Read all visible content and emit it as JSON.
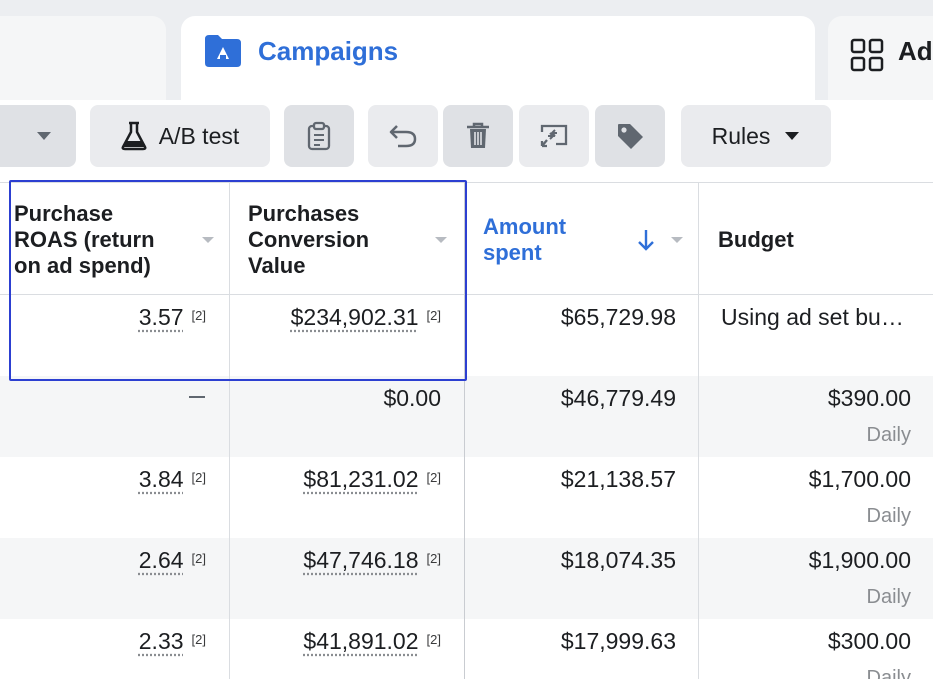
{
  "tabs": {
    "active_label": "Campaigns",
    "right_label": "Ad"
  },
  "toolbar": {
    "ab_test_label": "A/B test",
    "rules_label": "Rules"
  },
  "table": {
    "columns": [
      {
        "key": "roas",
        "label_lines": [
          "Purchase",
          "ROAS (return",
          "on ad spend)"
        ]
      },
      {
        "key": "conv_value",
        "label_lines": [
          "Purchases",
          "Conversion",
          "Value"
        ]
      },
      {
        "key": "amount_spent",
        "label_lines": [
          "Amount",
          "spent"
        ],
        "sorted": "desc"
      },
      {
        "key": "budget",
        "label_lines": [
          "Budget"
        ]
      }
    ],
    "rows": [
      {
        "roas": "3.57",
        "roas_note": "[2]",
        "conv_value": "$234,902.31",
        "conv_note": "[2]",
        "amount_spent": "$65,729.98",
        "budget": "Using ad set bu…",
        "budget_period": ""
      },
      {
        "roas": "—",
        "roas_note": "",
        "conv_value": "$0.00",
        "conv_note": "",
        "amount_spent": "$46,779.49",
        "budget": "$390.00",
        "budget_period": "Daily"
      },
      {
        "roas": "3.84",
        "roas_note": "[2]",
        "conv_value": "$81,231.02",
        "conv_note": "[2]",
        "amount_spent": "$21,138.57",
        "budget": "$1,700.00",
        "budget_period": "Daily"
      },
      {
        "roas": "2.64",
        "roas_note": "[2]",
        "conv_value": "$47,746.18",
        "conv_note": "[2]",
        "amount_spent": "$18,074.35",
        "budget": "$1,900.00",
        "budget_period": "Daily"
      },
      {
        "roas": "2.33",
        "roas_note": "[2]",
        "conv_value": "$41,891.02",
        "conv_note": "[2]",
        "amount_spent": "$17,999.63",
        "budget": "$300.00",
        "budget_period": "Daily"
      }
    ]
  },
  "colors": {
    "accent": "#2f6fd8",
    "highlight": "#2c3fd1"
  }
}
